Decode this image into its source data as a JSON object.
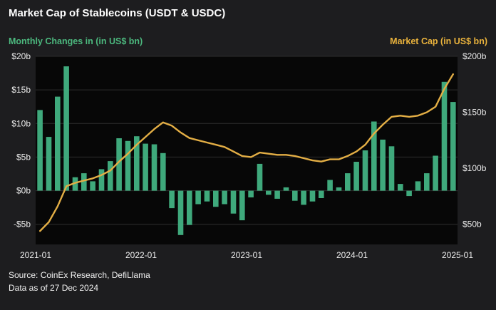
{
  "title": "Market Cap of Stablecoins (USDT & USDC)",
  "left_axis_title": "Monthly Changes in (in US$ bn)",
  "right_axis_title": "Market Cap (in US$ bn)",
  "footer": {
    "source": "Source: CoinEx Research, DefiLlama",
    "as_of": "Data as of 27 Dec 2024"
  },
  "colors": {
    "page_bg": "#1d1d1f",
    "plot_bg": "#070707",
    "grid": "#2e2e2e",
    "bars": "#3fa97c",
    "line": "#e3ae45",
    "left_title": "#4cb87e",
    "right_title": "#e9b23c",
    "tick_text": "#ececec"
  },
  "chart_data": {
    "type": "bar+line",
    "title": "Market Cap of Stablecoins (USDT & USDC)",
    "x_ticks": [
      "2021-01",
      "2022-01",
      "2023-01",
      "2024-01",
      "2025-01"
    ],
    "x_tick_positions": [
      0,
      12,
      24,
      36,
      48
    ],
    "left_axis": {
      "label": "Monthly Changes in (in US$ bn)",
      "ticks": [
        "$20b",
        "$15b",
        "$10b",
        "$5b",
        "$0b",
        "-$5b"
      ],
      "tick_values": [
        20,
        15,
        10,
        5,
        0,
        -5
      ],
      "range": [
        -8,
        20
      ]
    },
    "right_axis": {
      "label": "Market Cap (in US$ bn)",
      "ticks": [
        "$200b",
        "$150b",
        "$100b",
        "$50b"
      ],
      "tick_values": [
        200,
        150,
        100,
        50
      ],
      "range": [
        32,
        200
      ]
    },
    "months": [
      "2021-01",
      "2021-02",
      "2021-03",
      "2021-04",
      "2021-05",
      "2021-06",
      "2021-07",
      "2021-08",
      "2021-09",
      "2021-10",
      "2021-11",
      "2021-12",
      "2022-01",
      "2022-02",
      "2022-03",
      "2022-04",
      "2022-05",
      "2022-06",
      "2022-07",
      "2022-08",
      "2022-09",
      "2022-10",
      "2022-11",
      "2022-12",
      "2023-01",
      "2023-02",
      "2023-03",
      "2023-04",
      "2023-05",
      "2023-06",
      "2023-07",
      "2023-08",
      "2023-09",
      "2023-10",
      "2023-11",
      "2023-12",
      "2024-01",
      "2024-02",
      "2024-03",
      "2024-04",
      "2024-05",
      "2024-06",
      "2024-07",
      "2024-08",
      "2024-09",
      "2024-10",
      "2024-11",
      "2024-12"
    ],
    "series": [
      {
        "name": "Monthly Changes",
        "type": "bar",
        "unit": "US$ bn",
        "values": [
          12,
          8,
          14,
          18.5,
          2,
          2.6,
          1.4,
          3.2,
          4.4,
          7.8,
          7.4,
          8.1,
          7.0,
          6.9,
          5.6,
          -2.6,
          -6.6,
          -5.1,
          -2.0,
          -1.6,
          -2.4,
          -2.0,
          -3.4,
          -4.4,
          -1.0,
          4.0,
          -0.6,
          -1.2,
          0.5,
          -1.5,
          -2.1,
          -1.6,
          -1.1,
          1.6,
          0.5,
          2.6,
          4.3,
          6.0,
          10.3,
          7.6,
          6.6,
          1.0,
          -0.8,
          1.4,
          2.6,
          5.2,
          16.2,
          13.2
        ]
      },
      {
        "name": "Market Cap",
        "type": "line",
        "unit": "US$ bn",
        "values": [
          44,
          52,
          66,
          84,
          87,
          89,
          91,
          94,
          98,
          106,
          113,
          121,
          128,
          135,
          141,
          138,
          132,
          127,
          125,
          123,
          121,
          119,
          115,
          111,
          110,
          114,
          113,
          112,
          112,
          111,
          109,
          107,
          106,
          108,
          108,
          111,
          115,
          121,
          131,
          139,
          146,
          147,
          146,
          147,
          150,
          155,
          171,
          184
        ]
      }
    ]
  }
}
